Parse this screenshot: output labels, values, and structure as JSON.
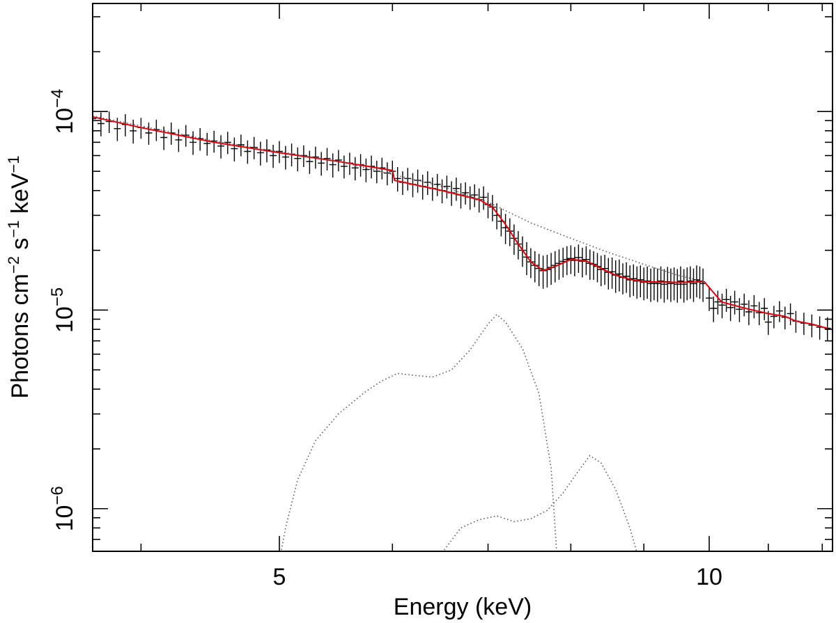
{
  "chart_data": {
    "type": "line",
    "xlabel": "Energy (keV)",
    "ylabel_parts": [
      "Photons cm",
      "−2",
      " s",
      "−1",
      " keV",
      "−1"
    ],
    "x_scale": "log",
    "y_scale": "log",
    "xlim": [
      3.7,
      12.2
    ],
    "ylim": [
      6.1e-07,
      0.00035
    ],
    "x_ticks": [
      {
        "value": 5,
        "label": "5"
      },
      {
        "value": 10,
        "label": "10"
      }
    ],
    "y_ticks": [
      {
        "value": 0.0001,
        "base": "10",
        "exp": "−4"
      },
      {
        "value": 1e-05,
        "base": "10",
        "exp": "−5"
      },
      {
        "value": 1e-06,
        "base": "10",
        "exp": "−6"
      }
    ],
    "colors": {
      "data": "#000000",
      "model": "#e8000b",
      "component": "#555555"
    },
    "series": [
      {
        "style": "data",
        "points": [
          [
            3.7,
            9.2e-05,
            1.2e-05
          ],
          [
            3.75,
            8.7e-05,
            1.2e-05
          ],
          [
            3.8,
            8.9e-05,
            1.1e-05
          ],
          [
            3.85,
            8.2e-05,
            1.1e-05
          ],
          [
            3.9,
            8.6e-05,
            1.1e-05
          ],
          [
            3.95,
            8e-05,
            1.1e-05
          ],
          [
            4.0,
            8.3e-05,
            1e-05
          ],
          [
            4.05,
            7.8e-05,
            1e-05
          ],
          [
            4.1,
            8.1e-05,
            1e-05
          ],
          [
            4.15,
            7.4e-05,
            1e-05
          ],
          [
            4.2,
            7.8e-05,
            1e-05
          ],
          [
            4.25,
            7.2e-05,
            9.5e-06
          ],
          [
            4.3,
            7.6e-05,
            9.5e-06
          ],
          [
            4.35,
            7e-05,
            9.5e-06
          ],
          [
            4.4,
            7.3e-05,
            9.5e-06
          ],
          [
            4.45,
            6.9e-05,
            9e-06
          ],
          [
            4.5,
            7.1e-05,
            9e-06
          ],
          [
            4.55,
            6.7e-05,
            9e-06
          ],
          [
            4.6,
            7e-05,
            9e-06
          ],
          [
            4.65,
            6.5e-05,
            9e-06
          ],
          [
            4.7,
            6.8e-05,
            8.5e-06
          ],
          [
            4.75,
            6.3e-05,
            8.5e-06
          ],
          [
            4.8,
            6.6e-05,
            8.5e-06
          ],
          [
            4.85,
            6.2e-05,
            8.5e-06
          ],
          [
            4.9,
            6.4e-05,
            8.5e-06
          ],
          [
            4.95,
            6e-05,
            8e-06
          ],
          [
            5.0,
            6.3e-05,
            8e-06
          ],
          [
            5.05,
            5.9e-05,
            8e-06
          ],
          [
            5.1,
            6.1e-05,
            8e-06
          ],
          [
            5.15,
            5.8e-05,
            8e-06
          ],
          [
            5.2,
            6e-05,
            7.5e-06
          ],
          [
            5.25,
            5.6e-05,
            7.5e-06
          ],
          [
            5.3,
            5.9e-05,
            7.5e-06
          ],
          [
            5.35,
            5.5e-05,
            7.5e-06
          ],
          [
            5.4,
            5.8e-05,
            7.5e-06
          ],
          [
            5.45,
            5.4e-05,
            7.5e-06
          ],
          [
            5.5,
            5.7e-05,
            7e-06
          ],
          [
            5.55,
            5.3e-05,
            7e-06
          ],
          [
            5.6,
            5.5e-05,
            7e-06
          ],
          [
            5.65,
            5.2e-05,
            7e-06
          ],
          [
            5.7,
            5.4e-05,
            7e-06
          ],
          [
            5.75,
            5.1e-05,
            7e-06
          ],
          [
            5.8,
            5.3e-05,
            7e-06
          ],
          [
            5.85,
            5e-05,
            6.5e-06
          ],
          [
            5.9,
            5.2e-05,
            6.5e-06
          ],
          [
            5.95,
            4.9e-05,
            6.5e-06
          ],
          [
            6.0,
            5e-05,
            6.5e-06
          ],
          [
            6.05,
            4.6e-05,
            6.5e-06
          ],
          [
            6.1,
            4.4e-05,
            6e-06
          ],
          [
            6.15,
            4.6e-05,
            6e-06
          ],
          [
            6.2,
            4.3e-05,
            6e-06
          ],
          [
            6.25,
            4.5e-05,
            6e-06
          ],
          [
            6.3,
            4.2e-05,
            6e-06
          ],
          [
            6.35,
            4.4e-05,
            6e-06
          ],
          [
            6.4,
            4.1e-05,
            5.5e-06
          ],
          [
            6.45,
            4.3e-05,
            5.5e-06
          ],
          [
            6.5,
            4e-05,
            5.5e-06
          ],
          [
            6.55,
            4.2e-05,
            5.5e-06
          ],
          [
            6.6,
            3.9e-05,
            5.5e-06
          ],
          [
            6.65,
            4.1e-05,
            5.5e-06
          ],
          [
            6.7,
            3.8e-05,
            5.5e-06
          ],
          [
            6.75,
            3.9e-05,
            5e-06
          ],
          [
            6.8,
            3.7e-05,
            5e-06
          ],
          [
            6.85,
            3.8e-05,
            5e-06
          ],
          [
            6.9,
            3.6e-05,
            5e-06
          ],
          [
            6.95,
            3.7e-05,
            5e-06
          ],
          [
            7.0,
            3.4e-05,
            5e-06
          ],
          [
            7.05,
            3.3e-05,
            5e-06
          ],
          [
            7.1,
            3e-05,
            4.5e-06
          ],
          [
            7.15,
            2.8e-05,
            4.5e-06
          ],
          [
            7.2,
            2.6e-05,
            4.5e-06
          ],
          [
            7.25,
            2.5e-05,
            4e-06
          ],
          [
            7.3,
            2.3e-05,
            4e-06
          ],
          [
            7.35,
            2.15e-05,
            3.5e-06
          ],
          [
            7.4,
            2e-05,
            3.5e-06
          ],
          [
            7.45,
            1.85e-05,
            3.5e-06
          ],
          [
            7.5,
            1.75e-05,
            3e-06
          ],
          [
            7.55,
            1.68e-05,
            3e-06
          ],
          [
            7.6,
            1.62e-05,
            3e-06
          ],
          [
            7.65,
            1.58e-05,
            3e-06
          ],
          [
            7.7,
            1.6e-05,
            3e-06
          ],
          [
            7.75,
            1.64e-05,
            3e-06
          ],
          [
            7.8,
            1.68e-05,
            3e-06
          ],
          [
            7.85,
            1.72e-05,
            3e-06
          ],
          [
            7.9,
            1.76e-05,
            3e-06
          ],
          [
            7.95,
            1.8e-05,
            3e-06
          ],
          [
            8.0,
            1.82e-05,
            3e-06
          ],
          [
            8.05,
            1.78e-05,
            3e-06
          ],
          [
            8.1,
            1.84e-05,
            3e-06
          ],
          [
            8.15,
            1.76e-05,
            3e-06
          ],
          [
            8.2,
            1.8e-05,
            3e-06
          ],
          [
            8.25,
            1.72e-05,
            3e-06
          ],
          [
            8.3,
            1.7e-05,
            2.8e-06
          ],
          [
            8.35,
            1.66e-05,
            2.8e-06
          ],
          [
            8.4,
            1.6e-05,
            2.8e-06
          ],
          [
            8.45,
            1.62e-05,
            2.8e-06
          ],
          [
            8.5,
            1.55e-05,
            2.8e-06
          ],
          [
            8.55,
            1.56e-05,
            2.8e-06
          ],
          [
            8.6,
            1.5e-05,
            2.8e-06
          ],
          [
            8.65,
            1.52e-05,
            2.8e-06
          ],
          [
            8.7,
            1.46e-05,
            2.6e-06
          ],
          [
            8.75,
            1.48e-05,
            2.6e-06
          ],
          [
            8.8,
            1.42e-05,
            2.6e-06
          ],
          [
            8.85,
            1.44e-05,
            2.6e-06
          ],
          [
            8.9,
            1.4e-05,
            2.6e-06
          ],
          [
            8.95,
            1.42e-05,
            2.6e-06
          ],
          [
            9.0,
            1.38e-05,
            2.6e-06
          ],
          [
            9.05,
            1.4e-05,
            2.6e-06
          ],
          [
            9.1,
            1.36e-05,
            2.6e-06
          ],
          [
            9.15,
            1.38e-05,
            2.6e-06
          ],
          [
            9.2,
            1.36e-05,
            2.6e-06
          ],
          [
            9.25,
            1.4e-05,
            2.6e-06
          ],
          [
            9.3,
            1.35e-05,
            2.6e-06
          ],
          [
            9.35,
            1.39e-05,
            2.6e-06
          ],
          [
            9.4,
            1.36e-05,
            2.6e-06
          ],
          [
            9.45,
            1.38e-05,
            2.6e-06
          ],
          [
            9.5,
            1.35e-05,
            2.6e-06
          ],
          [
            9.55,
            1.4e-05,
            2.6e-06
          ],
          [
            9.6,
            1.35e-05,
            2.6e-06
          ],
          [
            9.65,
            1.38e-05,
            2.6e-06
          ],
          [
            9.7,
            1.4e-05,
            2.6e-06
          ],
          [
            9.75,
            1.36e-05,
            2.6e-06
          ],
          [
            9.8,
            1.42e-05,
            2.6e-06
          ],
          [
            9.85,
            1.4e-05,
            2.6e-06
          ],
          [
            9.9,
            1.36e-05,
            2.6e-06
          ],
          [
            10.0,
            1.15e-05,
            1.6e-06
          ],
          [
            10.07,
            1.02e-05,
            1.5e-06
          ],
          [
            10.14,
            1.1e-05,
            1.5e-06
          ],
          [
            10.21,
            1.06e-05,
            1.5e-06
          ],
          [
            10.28,
            1.13e-05,
            1.5e-06
          ],
          [
            10.35,
            1.03e-05,
            1.5e-06
          ],
          [
            10.42,
            1.1e-05,
            1.5e-06
          ],
          [
            10.5,
            1.01e-05,
            1.4e-06
          ],
          [
            10.58,
            1.07e-05,
            1.4e-06
          ],
          [
            10.66,
            9.8e-06,
            1.4e-06
          ],
          [
            10.75,
            1.05e-05,
            1.4e-06
          ],
          [
            10.84,
            9.7e-06,
            1.3e-06
          ],
          [
            10.93,
            1.02e-05,
            1.3e-06
          ],
          [
            11.0,
            8.7e-06,
            1.2e-06
          ],
          [
            11.1,
            9.3e-06,
            1.2e-06
          ],
          [
            11.2,
            9.9e-06,
            1.2e-06
          ],
          [
            11.3,
            9.2e-06,
            1.2e-06
          ],
          [
            11.4,
            9.6e-06,
            1.2e-06
          ],
          [
            11.5,
            8.8e-06,
            1.1e-06
          ],
          [
            11.65,
            8.6e-06,
            1.1e-06
          ],
          [
            11.8,
            8.4e-06,
            1.1e-06
          ],
          [
            11.95,
            8.2e-06,
            1.1e-06
          ],
          [
            12.1,
            8.1e-06,
            1.1e-06
          ]
        ]
      },
      {
        "style": "model",
        "points": [
          [
            3.7,
            9.4e-05
          ],
          [
            4.0,
            8.3e-05
          ],
          [
            4.5,
            7e-05
          ],
          [
            5.0,
            6.2e-05
          ],
          [
            5.5,
            5.6e-05
          ],
          [
            6.0,
            5.05e-05
          ],
          [
            6.02,
            4.5e-05
          ],
          [
            6.5,
            4e-05
          ],
          [
            6.9,
            3.6e-05
          ],
          [
            7.05,
            3.3e-05
          ],
          [
            7.2,
            2.7e-05
          ],
          [
            7.35,
            2.15e-05
          ],
          [
            7.5,
            1.75e-05
          ],
          [
            7.65,
            1.58e-05
          ],
          [
            7.8,
            1.66e-05
          ],
          [
            8.0,
            1.8e-05
          ],
          [
            8.2,
            1.77e-05
          ],
          [
            8.4,
            1.62e-05
          ],
          [
            8.6,
            1.5e-05
          ],
          [
            8.8,
            1.43e-05
          ],
          [
            9.0,
            1.39e-05
          ],
          [
            9.5,
            1.38e-05
          ],
          [
            9.92,
            1.39e-05
          ],
          [
            10.2,
            1.1e-05
          ],
          [
            10.6,
            1.02e-05
          ],
          [
            11.0,
            9.6e-06
          ],
          [
            11.3,
            9.3e-06
          ],
          [
            11.5,
            8.8e-06
          ],
          [
            11.8,
            8.5e-06
          ],
          [
            12.1,
            8.1e-06
          ]
        ]
      },
      {
        "style": "component",
        "points": [
          [
            3.7,
            9.5e-05
          ],
          [
            4.5,
            7.1e-05
          ],
          [
            5.5,
            5.6e-05
          ],
          [
            6.5,
            4.2e-05
          ],
          [
            7.0,
            3.5e-05
          ],
          [
            7.5,
            2.75e-05
          ],
          [
            8.0,
            2.3e-05
          ],
          [
            8.5,
            1.95e-05
          ],
          [
            9.0,
            1.7e-05
          ],
          [
            9.5,
            1.5e-05
          ],
          [
            9.92,
            1.39e-05
          ]
        ]
      },
      {
        "style": "component",
        "points": [
          [
            5.0,
            5.5e-07
          ],
          [
            5.05,
            8e-07
          ],
          [
            5.15,
            1.4e-06
          ],
          [
            5.3,
            2.2e-06
          ],
          [
            5.5,
            3e-06
          ],
          [
            5.75,
            3.9e-06
          ],
          [
            5.9,
            4.4e-06
          ],
          [
            6.05,
            4.8e-06
          ],
          [
            6.2,
            4.7e-06
          ],
          [
            6.4,
            4.6e-06
          ],
          [
            6.6,
            5e-06
          ],
          [
            6.8,
            6.3e-06
          ],
          [
            7.0,
            8.5e-06
          ],
          [
            7.1,
            9.5e-06
          ],
          [
            7.2,
            8.7e-06
          ],
          [
            7.4,
            6.4e-06
          ],
          [
            7.6,
            3.8e-06
          ],
          [
            7.75,
            1.6e-06
          ],
          [
            7.82,
            6e-07
          ]
        ]
      },
      {
        "style": "component",
        "points": [
          [
            6.5,
            6e-07
          ],
          [
            6.7,
            8e-07
          ],
          [
            6.9,
            8.8e-07
          ],
          [
            7.1,
            9.2e-07
          ],
          [
            7.3,
            8.6e-07
          ],
          [
            7.5,
            8.9e-07
          ],
          [
            7.7,
            9.8e-07
          ],
          [
            7.9,
            1.2e-06
          ],
          [
            8.1,
            1.55e-06
          ],
          [
            8.25,
            1.85e-06
          ],
          [
            8.4,
            1.7e-06
          ],
          [
            8.6,
            1.25e-06
          ],
          [
            8.8,
            8e-07
          ],
          [
            8.9,
            6e-07
          ]
        ]
      }
    ]
  }
}
